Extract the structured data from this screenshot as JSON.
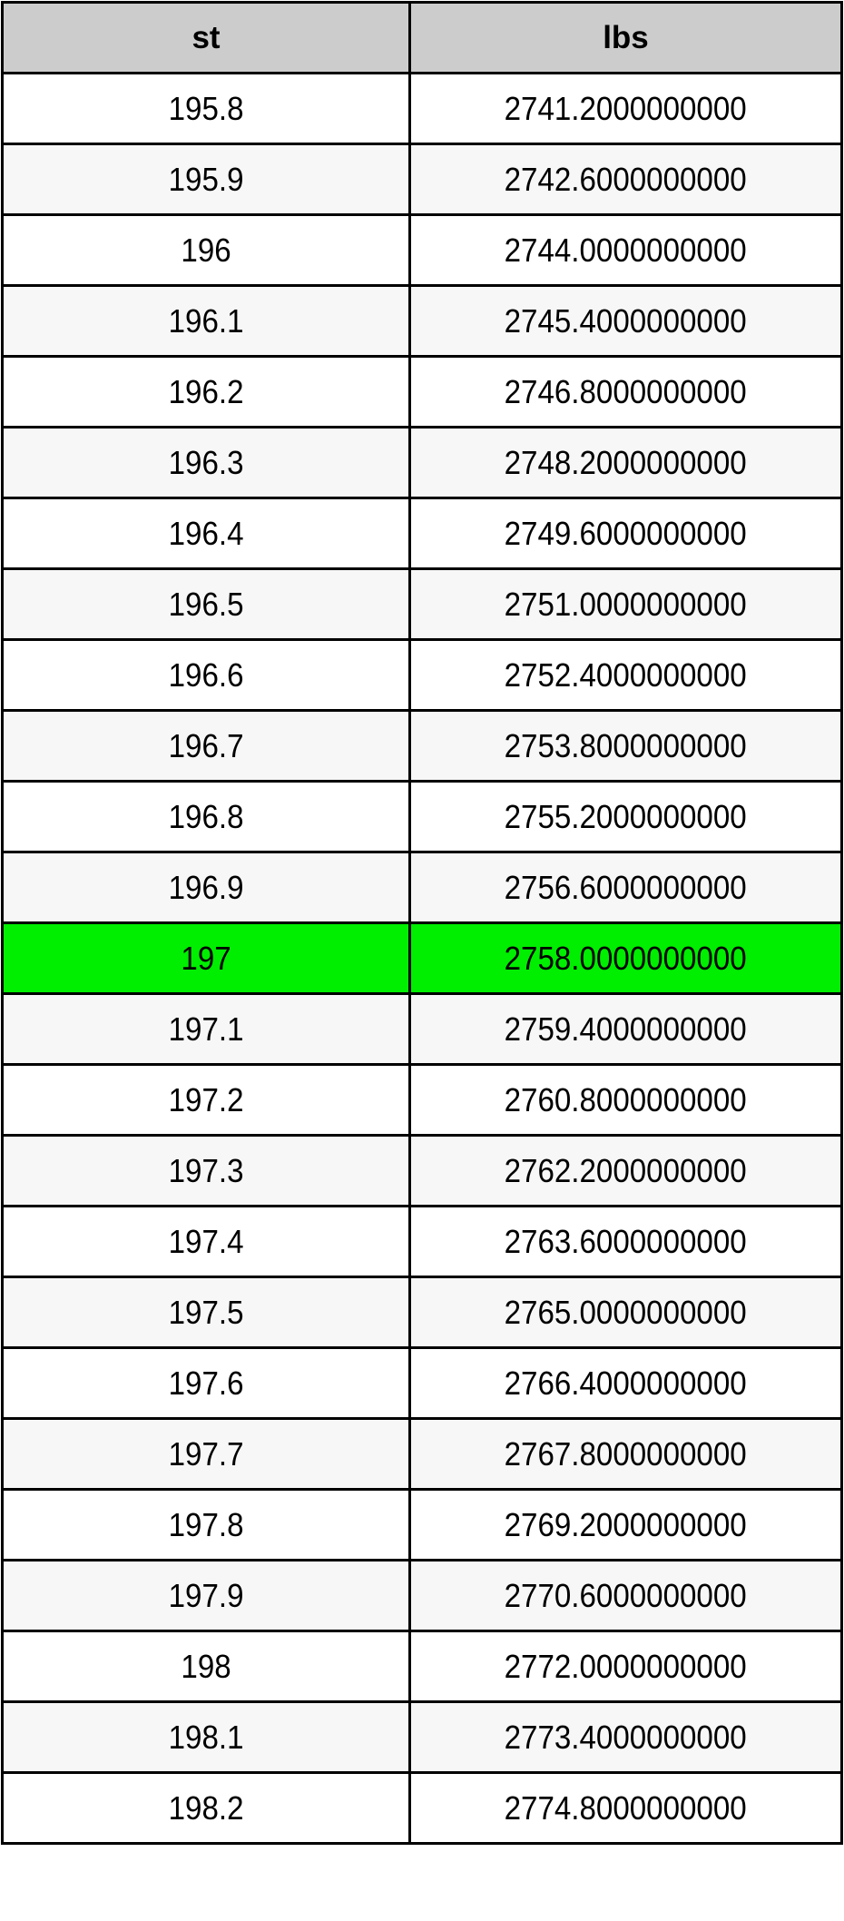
{
  "table": {
    "headers": [
      "st",
      "lbs"
    ],
    "highlight_color": "#00ee00",
    "highlighted_row_index": 12,
    "rows": [
      [
        "195.8",
        "2741.2000000000"
      ],
      [
        "195.9",
        "2742.6000000000"
      ],
      [
        "196",
        "2744.0000000000"
      ],
      [
        "196.1",
        "2745.4000000000"
      ],
      [
        "196.2",
        "2746.8000000000"
      ],
      [
        "196.3",
        "2748.2000000000"
      ],
      [
        "196.4",
        "2749.6000000000"
      ],
      [
        "196.5",
        "2751.0000000000"
      ],
      [
        "196.6",
        "2752.4000000000"
      ],
      [
        "196.7",
        "2753.8000000000"
      ],
      [
        "196.8",
        "2755.2000000000"
      ],
      [
        "196.9",
        "2756.6000000000"
      ],
      [
        "197",
        "2758.0000000000"
      ],
      [
        "197.1",
        "2759.4000000000"
      ],
      [
        "197.2",
        "2760.8000000000"
      ],
      [
        "197.3",
        "2762.2000000000"
      ],
      [
        "197.4",
        "2763.6000000000"
      ],
      [
        "197.5",
        "2765.0000000000"
      ],
      [
        "197.6",
        "2766.4000000000"
      ],
      [
        "197.7",
        "2767.8000000000"
      ],
      [
        "197.8",
        "2769.2000000000"
      ],
      [
        "197.9",
        "2770.6000000000"
      ],
      [
        "198",
        "2772.0000000000"
      ],
      [
        "198.1",
        "2773.4000000000"
      ],
      [
        "198.2",
        "2774.8000000000"
      ]
    ]
  }
}
